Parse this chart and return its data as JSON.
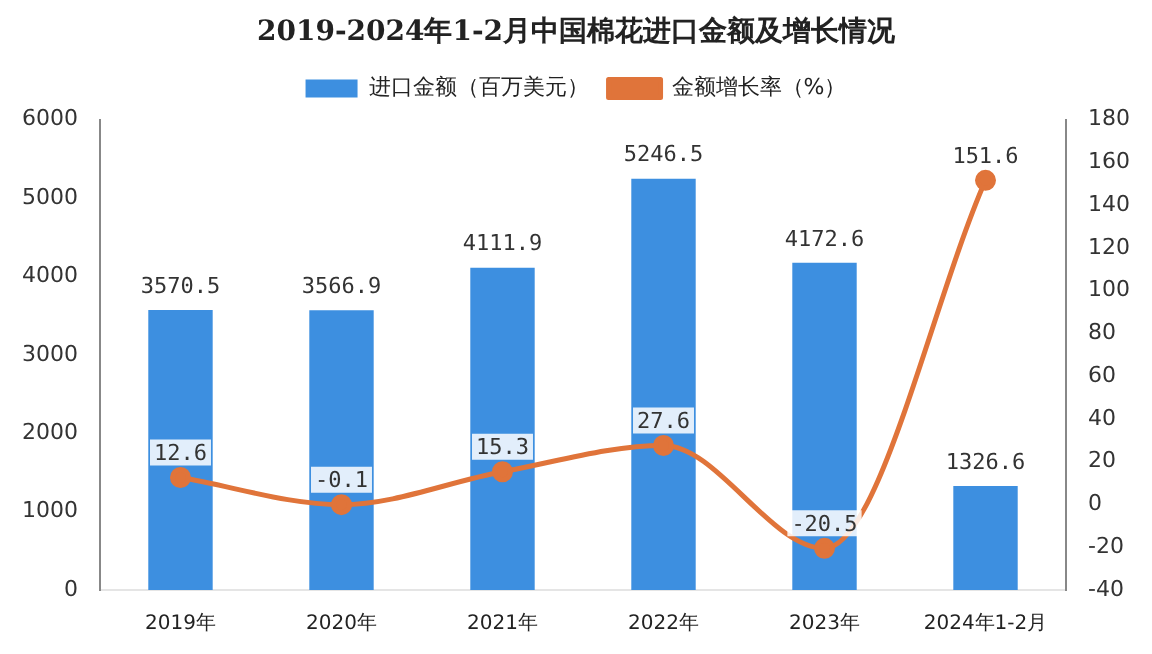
{
  "chart_data": {
    "type": "bar",
    "title": "2019-2024年1-2月中国棉花进口金额及增长情况",
    "categories": [
      "2019年",
      "2020年",
      "2021年",
      "2022年",
      "2023年",
      "2024年1-2月"
    ],
    "series": [
      {
        "name": "进口金额（百万美元）",
        "color": "#3d8fe0",
        "values": [
          3570.5,
          3566.9,
          4111.9,
          5246.5,
          4172.6,
          1326.6
        ]
      },
      {
        "name": "金额增长率（%）",
        "type": "line",
        "axis": "y2",
        "color": "#e0743a",
        "marker": "circle",
        "values": [
          12.6,
          -0.1,
          15.3,
          27.6,
          -20.5,
          151.6
        ]
      }
    ],
    "ylim": [
      0,
      6000
    ],
    "yticks": [
      0,
      1000,
      2000,
      3000,
      4000,
      5000,
      6000
    ],
    "y2lim": [
      -40,
      180
    ],
    "y2ticks": [
      -40,
      -20,
      0,
      20,
      40,
      60,
      80,
      100,
      120,
      140,
      160,
      180
    ],
    "data_labels": true,
    "grid": false,
    "legend": "top"
  }
}
